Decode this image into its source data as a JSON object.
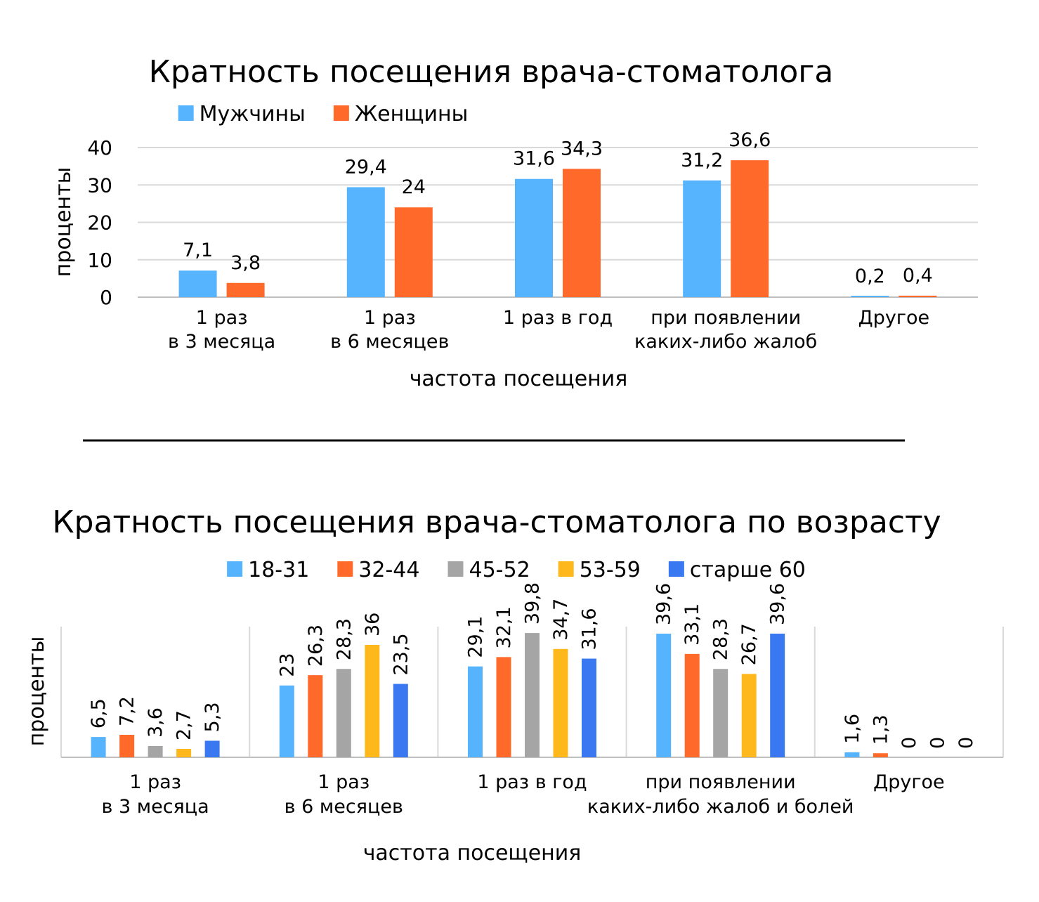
{
  "chart_data": [
    {
      "type": "bar",
      "title": "Кратность посещения врача-стоматолога",
      "xlabel": "частота посещения",
      "ylabel": "проценты",
      "ylim": [
        0,
        40
      ],
      "yticks": [
        "0",
        "10",
        "20",
        "30",
        "40"
      ],
      "grid": true,
      "legend_position": "top",
      "categories": [
        [
          "1 раз",
          "в 3 месяца"
        ],
        [
          "1 раз",
          "в 6 месяцев"
        ],
        [
          "1 раз в год"
        ],
        [
          "при появлении",
          "каких-либо жалоб"
        ],
        [
          "Другое"
        ]
      ],
      "series": [
        {
          "name": "Мужчины",
          "color": "#56B4FF",
          "values": [
            7.1,
            29.4,
            31.6,
            31.2,
            0.2
          ],
          "labels": [
            "7,1",
            "29,4",
            "31,6",
            "31,2",
            "0,2"
          ]
        },
        {
          "name": "Женщины",
          "color": "#FF6A2B",
          "values": [
            3.8,
            24,
            34.3,
            36.6,
            0.4
          ],
          "labels": [
            "3,8",
            "24",
            "34,3",
            "36,6",
            "0,4"
          ]
        }
      ]
    },
    {
      "type": "bar",
      "title": "Кратность посещения врача-стоматолога по возрасту",
      "xlabel": "частота посещения",
      "ylabel": "проценты",
      "ylim": [
        0,
        45
      ],
      "grid": false,
      "legend_position": "top",
      "categories": [
        [
          "1 раз",
          "в 3 месяца"
        ],
        [
          "1 раз",
          "в 6 месяцев"
        ],
        [
          "1 раз в год"
        ],
        [
          "при появлении",
          "каких-либо жалоб и болей"
        ],
        [
          "Другое"
        ]
      ],
      "series": [
        {
          "name": "18-31",
          "color": "#56B4FF",
          "values": [
            6.5,
            23,
            29.1,
            39.6,
            1.6
          ],
          "labels": [
            "6,5",
            "23",
            "29,1",
            "39,6",
            "1,6"
          ]
        },
        {
          "name": "32-44",
          "color": "#FF6A2B",
          "values": [
            7.2,
            26.3,
            32.1,
            33.1,
            1.3
          ],
          "labels": [
            "7,2",
            "26,3",
            "32,1",
            "33,1",
            "1,3"
          ]
        },
        {
          "name": "45-52",
          "color": "#A5A5A5",
          "values": [
            3.6,
            28.3,
            39.8,
            28.3,
            0
          ],
          "labels": [
            "3,6",
            "28,3",
            "39,8",
            "28,3",
            "0"
          ]
        },
        {
          "name": "53-59",
          "color": "#FFB81C",
          "values": [
            2.7,
            36,
            34.7,
            26.7,
            0
          ],
          "labels": [
            "2,7",
            "36",
            "34,7",
            "26,7",
            "0"
          ]
        },
        {
          "name": "старше 60",
          "color": "#3A78F2",
          "values": [
            5.3,
            23.5,
            31.6,
            39.6,
            0
          ],
          "labels": [
            "5,3",
            "23,5",
            "31,6",
            "39,6",
            "0"
          ]
        }
      ]
    }
  ]
}
